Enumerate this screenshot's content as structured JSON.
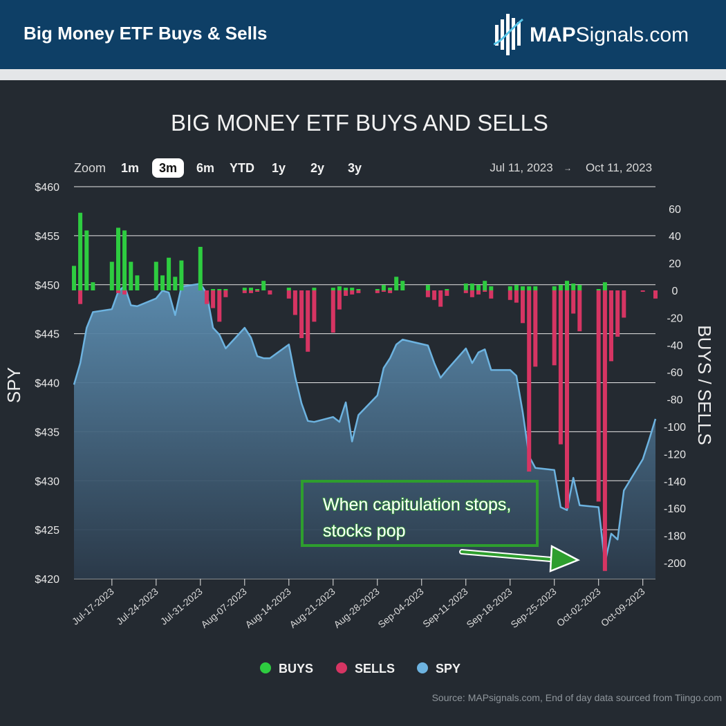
{
  "header": {
    "title": "Big Money ETF Buys & Sells",
    "brand_strong": "MAP",
    "brand_rest": "Signals.com"
  },
  "toolbar": {
    "zoom_label": "Zoom",
    "zoom_options": [
      "1m",
      "3m",
      "6m",
      "YTD",
      "1y",
      "2y",
      "3y"
    ],
    "zoom_selected": "3m",
    "date_from": "Jul 11, 2023",
    "date_arrow": "→",
    "date_to": "Oct 11, 2023"
  },
  "annotation": {
    "line1": "When capitulation stops,",
    "line2": "stocks pop"
  },
  "source": "Source: MAPsignals.com, End of day data sourced from Tiingo.com",
  "colors": {
    "buys": "#2ecc40",
    "sells": "#d63563",
    "spy": "#6db3e0",
    "annotation": "#2e9e2e"
  },
  "chart_data": {
    "type": "line+bar",
    "title": "BIG MONEY ETF BUYS AND SELLS",
    "y_left_label": "SPY",
    "y_right_label": "BUYS / SELLS",
    "y_left_ticks": [
      "$460",
      "$455",
      "$450",
      "$445",
      "$440",
      "$435",
      "$430",
      "$425",
      "$420"
    ],
    "y_left_lim": [
      420,
      460
    ],
    "y_right_ticks": [
      "60",
      "40",
      "20",
      "0",
      "-20",
      "-40",
      "-60",
      "-80",
      "-100",
      "-120",
      "-140",
      "-160",
      "-180",
      "-200"
    ],
    "y_right_lim": [
      -210,
      70
    ],
    "x_ticks": [
      "Jul-17-2023",
      "Jul-24-2023",
      "Jul-31-2023",
      "Aug-07-2023",
      "Aug-14-2023",
      "Aug-21-2023",
      "Aug-28-2023",
      "Sep-04-2023",
      "Sep-11-2023",
      "Sep-18-2023",
      "Sep-25-2023",
      "Oct-02-2023",
      "Oct-09-2023"
    ],
    "legend": [
      "BUYS",
      "SELLS",
      "SPY"
    ],
    "legend_position": "bottom",
    "series": [
      {
        "name": "SPY",
        "type": "area",
        "x": [
          "2023-07-11",
          "2023-07-12",
          "2023-07-13",
          "2023-07-14",
          "2023-07-17",
          "2023-07-18",
          "2023-07-19",
          "2023-07-20",
          "2023-07-21",
          "2023-07-24",
          "2023-07-25",
          "2023-07-26",
          "2023-07-27",
          "2023-07-28",
          "2023-07-31",
          "2023-08-01",
          "2023-08-02",
          "2023-08-03",
          "2023-08-04",
          "2023-08-07",
          "2023-08-08",
          "2023-08-09",
          "2023-08-10",
          "2023-08-11",
          "2023-08-14",
          "2023-08-15",
          "2023-08-16",
          "2023-08-17",
          "2023-08-18",
          "2023-08-21",
          "2023-08-22",
          "2023-08-23",
          "2023-08-24",
          "2023-08-25",
          "2023-08-28",
          "2023-08-29",
          "2023-08-30",
          "2023-08-31",
          "2023-09-01",
          "2023-09-05",
          "2023-09-06",
          "2023-09-07",
          "2023-09-08",
          "2023-09-11",
          "2023-09-12",
          "2023-09-13",
          "2023-09-14",
          "2023-09-15",
          "2023-09-18",
          "2023-09-19",
          "2023-09-20",
          "2023-09-21",
          "2023-09-22",
          "2023-09-25",
          "2023-09-26",
          "2023-09-27",
          "2023-09-28",
          "2023-09-29",
          "2023-10-02",
          "2023-10-03",
          "2023-10-04",
          "2023-10-05",
          "2023-10-06",
          "2023-10-09",
          "2023-10-10",
          "2023-10-11"
        ],
        "values": [
          439.8,
          442.0,
          445.6,
          447.2,
          447.5,
          449.3,
          449.9,
          447.9,
          447.8,
          448.6,
          449.4,
          449.2,
          446.9,
          449.8,
          450.1,
          449.1,
          445.6,
          444.9,
          443.5,
          445.6,
          444.6,
          442.7,
          442.5,
          442.5,
          443.9,
          440.6,
          437.9,
          436.1,
          436.0,
          436.5,
          436.0,
          438.0,
          434.0,
          436.7,
          438.7,
          441.5,
          442.5,
          443.9,
          444.4,
          443.8,
          442.0,
          440.5,
          441.3,
          443.5,
          442.0,
          443.1,
          443.4,
          441.3,
          441.3,
          440.7,
          437.0,
          432.5,
          431.3,
          431.1,
          427.3,
          427.0,
          430.3,
          427.5,
          427.3,
          421.6,
          424.6,
          424.0,
          429.0,
          432.2,
          434.2,
          436.3
        ]
      },
      {
        "name": "BUYS",
        "type": "bar",
        "x": [
          "2023-07-11",
          "2023-07-12",
          "2023-07-13",
          "2023-07-14",
          "2023-07-17",
          "2023-07-18",
          "2023-07-19",
          "2023-07-20",
          "2023-07-21",
          "2023-07-24",
          "2023-07-25",
          "2023-07-26",
          "2023-07-27",
          "2023-07-28",
          "2023-07-31",
          "2023-08-01",
          "2023-08-02",
          "2023-08-03",
          "2023-08-04",
          "2023-08-07",
          "2023-08-08",
          "2023-08-09",
          "2023-08-10",
          "2023-08-11",
          "2023-08-14",
          "2023-08-15",
          "2023-08-16",
          "2023-08-17",
          "2023-08-18",
          "2023-08-21",
          "2023-08-22",
          "2023-08-23",
          "2023-08-24",
          "2023-08-25",
          "2023-08-28",
          "2023-08-29",
          "2023-08-30",
          "2023-08-31",
          "2023-09-01",
          "2023-09-05",
          "2023-09-06",
          "2023-09-07",
          "2023-09-08",
          "2023-09-11",
          "2023-09-12",
          "2023-09-13",
          "2023-09-14",
          "2023-09-15",
          "2023-09-18",
          "2023-09-19",
          "2023-09-20",
          "2023-09-21",
          "2023-09-22",
          "2023-09-25",
          "2023-09-26",
          "2023-09-27",
          "2023-09-28",
          "2023-09-29",
          "2023-10-02",
          "2023-10-03",
          "2023-10-04",
          "2023-10-05",
          "2023-10-06",
          "2023-10-09",
          "2023-10-10",
          "2023-10-11"
        ],
        "values": [
          18,
          57,
          44,
          6,
          21,
          46,
          44,
          21,
          11,
          21,
          11,
          24,
          10,
          22,
          32,
          0,
          1,
          1,
          1,
          2,
          2,
          1,
          7,
          0,
          2,
          0,
          0,
          0,
          2,
          2,
          3,
          2,
          2,
          1,
          1,
          4,
          2,
          10,
          7,
          4,
          0,
          0,
          1,
          5,
          5,
          4,
          7,
          3,
          3,
          4,
          3,
          3,
          3,
          3,
          4,
          7,
          5,
          4,
          1,
          6,
          0,
          0,
          0,
          0,
          0,
          0
        ]
      },
      {
        "name": "SELLS",
        "type": "bar",
        "x": [
          "2023-07-11",
          "2023-07-12",
          "2023-07-13",
          "2023-07-14",
          "2023-07-17",
          "2023-07-18",
          "2023-07-19",
          "2023-07-20",
          "2023-07-21",
          "2023-07-24",
          "2023-07-25",
          "2023-07-26",
          "2023-07-27",
          "2023-07-28",
          "2023-07-31",
          "2023-08-01",
          "2023-08-02",
          "2023-08-03",
          "2023-08-04",
          "2023-08-07",
          "2023-08-08",
          "2023-08-09",
          "2023-08-10",
          "2023-08-11",
          "2023-08-14",
          "2023-08-15",
          "2023-08-16",
          "2023-08-17",
          "2023-08-18",
          "2023-08-21",
          "2023-08-22",
          "2023-08-23",
          "2023-08-24",
          "2023-08-25",
          "2023-08-28",
          "2023-08-29",
          "2023-08-30",
          "2023-08-31",
          "2023-09-01",
          "2023-09-05",
          "2023-09-06",
          "2023-09-07",
          "2023-09-08",
          "2023-09-11",
          "2023-09-12",
          "2023-09-13",
          "2023-09-14",
          "2023-09-15",
          "2023-09-18",
          "2023-09-19",
          "2023-09-20",
          "2023-09-21",
          "2023-09-22",
          "2023-09-25",
          "2023-09-26",
          "2023-09-27",
          "2023-09-28",
          "2023-09-29",
          "2023-10-02",
          "2023-10-03",
          "2023-10-04",
          "2023-10-05",
          "2023-10-06",
          "2023-10-09",
          "2023-10-10",
          "2023-10-11"
        ],
        "values": [
          0,
          -10,
          0,
          0,
          0,
          -2,
          -3,
          0,
          0,
          0,
          0,
          0,
          0,
          0,
          0,
          -10,
          -13,
          -23,
          -5,
          -2,
          -2,
          -1,
          0,
          -3,
          -6,
          -18,
          -35,
          -45,
          -23,
          -31,
          -14,
          -4,
          -3,
          -2,
          -2,
          -1,
          -2,
          0,
          0,
          -5,
          -7,
          -12,
          -4,
          -2,
          -5,
          -3,
          -1,
          -6,
          -7,
          -9,
          -24,
          -133,
          -56,
          -55,
          -113,
          -160,
          -17,
          -30,
          -155,
          -206,
          -52,
          -34,
          -20,
          -1,
          0,
          -6
        ]
      }
    ]
  }
}
